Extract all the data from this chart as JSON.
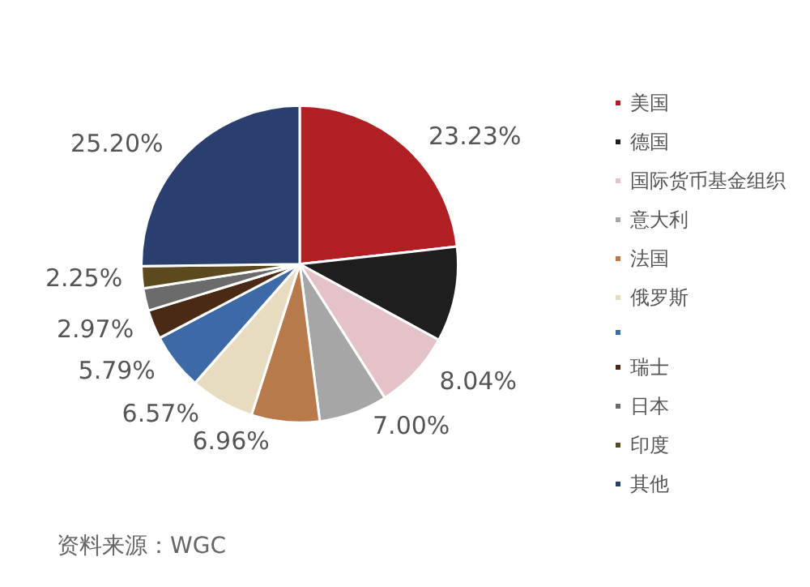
{
  "chart_data": {
    "type": "pie",
    "categories": [
      "美国",
      "德国",
      "国际货币基金组织",
      "意大利",
      "法国",
      "俄罗斯",
      null,
      "瑞士",
      "日本",
      "印度",
      "其他"
    ],
    "values": [
      23.23,
      9.7,
      8.04,
      7.0,
      6.96,
      6.57,
      5.79,
      2.97,
      2.29,
      2.25,
      25.2
    ],
    "value_labels": [
      "23.23%",
      null,
      "8.04%",
      "7.00%",
      "6.96%",
      "6.57%",
      "5.79%",
      "2.97%",
      null,
      "2.25%",
      "25.20%"
    ],
    "colors": [
      "#b01f24",
      "#1e1e1e",
      "#e3c3c8",
      "#a6a6a6",
      "#b87a4b",
      "#e8dcc0",
      "#3d69a6",
      "#4a2a14",
      "#6b6b6b",
      "#5c4a1e",
      "#2a3f6e"
    ],
    "legend": "right",
    "annotations": [
      "资料来源：WGC"
    ]
  }
}
